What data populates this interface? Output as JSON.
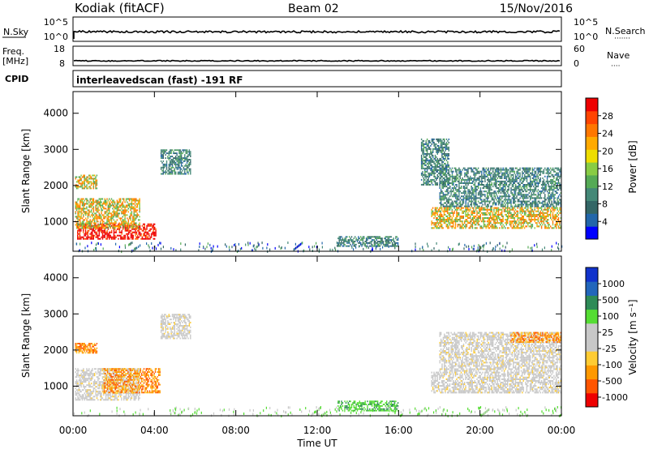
{
  "header": {
    "site": "Kodiak (fitACF)",
    "beam": "Beam 02",
    "date": "15/Nov/2016"
  },
  "labels": {
    "nsky": "N.Sky",
    "nsearch": "N.Search",
    "nsearch_dots": "·······",
    "freq_line1": "Freq.",
    "freq_line2": "[MHz]",
    "nave": "Nave",
    "nave_dots": "····",
    "cpid": "CPID",
    "cpid_text": "interleavedscan (fast) -191 RF"
  },
  "small_axes": {
    "nsky_ticks": [
      "10^5",
      "10^0"
    ],
    "nsearch_ticks": [
      "10^5",
      "10^0"
    ],
    "freq_ticks": [
      "18",
      "8"
    ],
    "nave_ticks": [
      "60",
      "0"
    ]
  },
  "colors": {
    "power_scale": [
      "#0000ff",
      "#2266aa",
      "#336666",
      "#448877",
      "#55aa55",
      "#88cc44",
      "#eedd00",
      "#ffaa00",
      "#ff7700",
      "#ff4400",
      "#ee0000"
    ],
    "velocity_scale": [
      "#ee0000",
      "#ff5500",
      "#ff9900",
      "#ffcc33",
      "#c8c8c8",
      "#c8c8c8",
      "#55dd33",
      "#2e8b57",
      "#2266bb",
      "#1133cc"
    ]
  },
  "chart_data": [
    {
      "type": "heatmap",
      "name": "power",
      "ylabel": "Slant Range [km]",
      "xlabel": "",
      "x_ticks": [
        "00:00",
        "04:00",
        "08:00",
        "12:00",
        "16:00",
        "20:00",
        "00:00"
      ],
      "y_ticks": [
        1000,
        2000,
        3000,
        4000
      ],
      "xlim_hours": [
        0,
        24
      ],
      "ylim_km": [
        180,
        4600
      ],
      "colorbar": {
        "label": "Power [dB]",
        "ticks": [
          "28",
          "24",
          "20",
          "16",
          "12",
          "8",
          "4"
        ]
      },
      "echo_regions": [
        {
          "t0": 0.2,
          "t1": 4.1,
          "r0": 500,
          "r1": 950,
          "level": "high"
        },
        {
          "t0": 0.1,
          "t1": 3.3,
          "r0": 800,
          "r1": 1650,
          "level": "medium"
        },
        {
          "t0": 0.1,
          "t1": 1.2,
          "r0": 1900,
          "r1": 2300,
          "level": "medium"
        },
        {
          "t0": 4.3,
          "t1": 5.8,
          "r0": 2300,
          "r1": 3000,
          "level": "low"
        },
        {
          "t0": 17.6,
          "t1": 24.0,
          "r0": 800,
          "r1": 1400,
          "level": "medium"
        },
        {
          "t0": 18.0,
          "t1": 24.0,
          "r0": 1400,
          "r1": 2500,
          "level": "low"
        },
        {
          "t0": 17.1,
          "t1": 18.5,
          "r0": 2000,
          "r1": 3300,
          "level": "low"
        },
        {
          "t0": 13.0,
          "t1": 16.0,
          "r0": 300,
          "r1": 600,
          "level": "low"
        }
      ]
    },
    {
      "type": "heatmap",
      "name": "velocity",
      "ylabel": "Slant Range [km]",
      "xlabel": "Time UT",
      "x_ticks": [
        "00:00",
        "04:00",
        "08:00",
        "12:00",
        "16:00",
        "20:00",
        "00:00"
      ],
      "y_ticks": [
        1000,
        2000,
        3000,
        4000
      ],
      "xlim_hours": [
        0,
        24
      ],
      "ylim_km": [
        180,
        4600
      ],
      "colorbar": {
        "label": "Velocity [m s⁻¹]",
        "ticks": [
          "1000",
          "500",
          "100",
          "25",
          "-25",
          "-100",
          "-500",
          "-1000"
        ]
      },
      "echo_regions": [
        {
          "t0": 0.1,
          "t1": 3.3,
          "r0": 600,
          "r1": 1500,
          "level": "ground"
        },
        {
          "t0": 1.5,
          "t1": 4.3,
          "r0": 800,
          "r1": 1500,
          "level": "negative"
        },
        {
          "t0": 0.1,
          "t1": 1.2,
          "r0": 1900,
          "r1": 2200,
          "level": "negative"
        },
        {
          "t0": 4.3,
          "t1": 5.8,
          "r0": 2300,
          "r1": 3000,
          "level": "ground"
        },
        {
          "t0": 17.6,
          "t1": 24.0,
          "r0": 800,
          "r1": 1400,
          "level": "ground"
        },
        {
          "t0": 18.0,
          "t1": 24.0,
          "r0": 1400,
          "r1": 2500,
          "level": "ground"
        },
        {
          "t0": 21.5,
          "t1": 24.0,
          "r0": 2200,
          "r1": 2500,
          "level": "negative"
        },
        {
          "t0": 13.0,
          "t1": 16.0,
          "r0": 300,
          "r1": 600,
          "level": "positive"
        }
      ]
    }
  ]
}
